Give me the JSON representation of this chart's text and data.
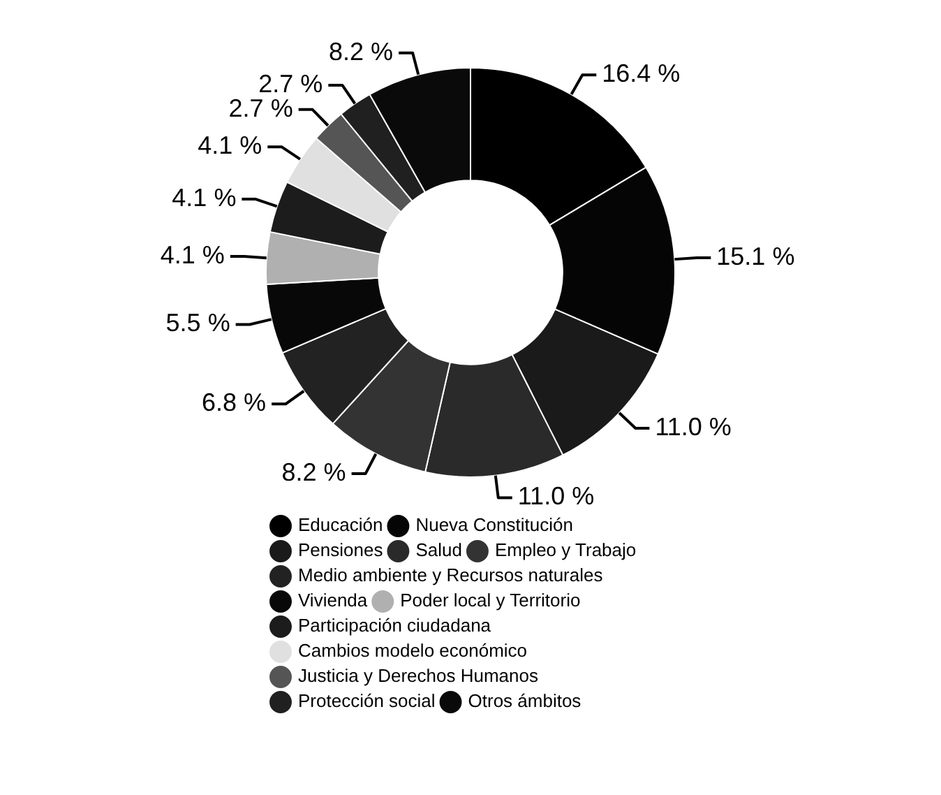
{
  "chart_data": {
    "type": "donut",
    "categories": [
      "Educación",
      "Nueva Constitución",
      "Pensiones",
      "Salud",
      "Empleo y Trabajo",
      "Medio ambiente y Recursos naturales",
      "Vivienda",
      "Poder local y Territorio",
      "Participación ciudadana",
      "Cambios modelo económico",
      "Justicia y Derechos Humanos",
      "Protección social",
      "Otros ámbitos"
    ],
    "values": [
      16.4,
      15.1,
      11.0,
      11.0,
      8.2,
      6.8,
      5.5,
      4.1,
      4.1,
      4.1,
      2.7,
      2.7,
      8.2
    ],
    "value_labels": [
      "16.4 %",
      "15.1 %",
      "11.0 %",
      "11.0 %",
      "8.2 %",
      "6.8 %",
      "5.5 %",
      "4.1 %",
      "4.1 %",
      "4.1 %",
      "2.7 %",
      "2.7 %",
      "8.2 %"
    ],
    "colors": [
      "#000000",
      "#050505",
      "#1a1a1a",
      "#2a2a2a",
      "#333333",
      "#222222",
      "#080808",
      "#b0b0b0",
      "#1c1c1c",
      "#e0e0e0",
      "#555555",
      "#202020",
      "#0a0a0a"
    ],
    "legend": "bottom"
  }
}
